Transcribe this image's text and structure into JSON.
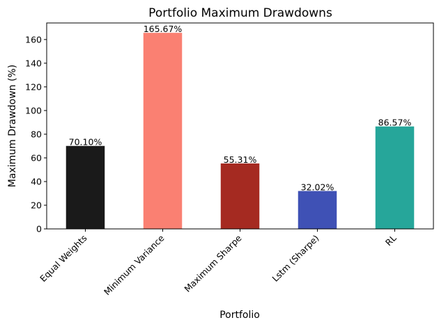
{
  "chart_data": {
    "type": "bar",
    "title": "Portfolio Maximum Drawdowns",
    "xlabel": "Portfolio",
    "ylabel": "Maximum Drawdown (%)",
    "categories": [
      "Equal Weights",
      "Minimum Variance",
      "Maximum Sharpe",
      "Lstm (Sharpe)",
      "RL"
    ],
    "values": [
      70.1,
      165.67,
      55.31,
      32.02,
      86.57
    ],
    "data_labels": [
      "70.10%",
      "165.67%",
      "55.31%",
      "32.02%",
      "86.57%"
    ],
    "colors": [
      "#1a1a1a",
      "#fa8072",
      "#a52a21",
      "#3f51b5",
      "#26a69a"
    ],
    "ylim": [
      0,
      174
    ],
    "yticks": [
      0,
      20,
      40,
      60,
      80,
      100,
      120,
      140,
      160
    ],
    "grid": false,
    "legend": "none"
  }
}
